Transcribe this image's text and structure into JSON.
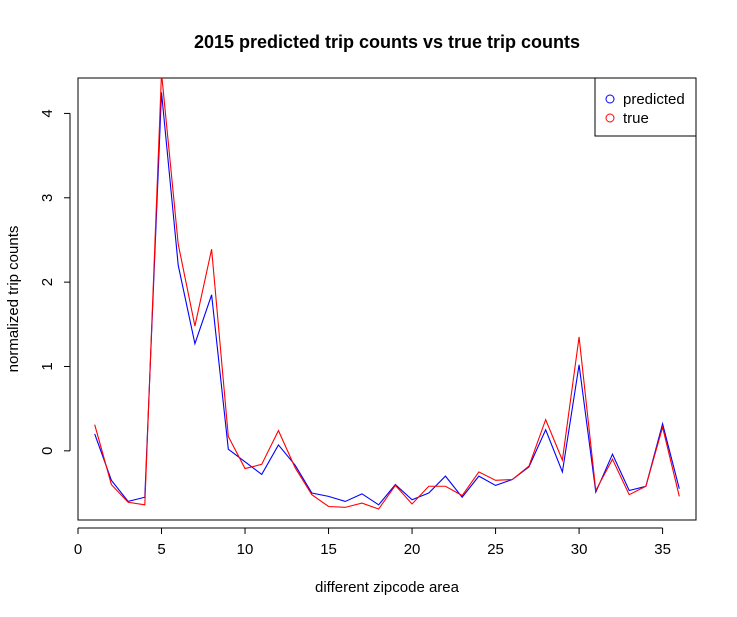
{
  "chart_data": {
    "type": "line",
    "title": "2015 predicted trip counts vs true trip counts",
    "xlabel": "different zipcode area",
    "ylabel": "normalized trip counts",
    "xlim": [
      0,
      37
    ],
    "ylim": [
      -0.82,
      4.42
    ],
    "x_ticks": [
      0,
      5,
      10,
      15,
      20,
      25,
      30,
      35
    ],
    "y_ticks": [
      0,
      1,
      2,
      3,
      4
    ],
    "grid": false,
    "legend_position": "top-right",
    "x": [
      1,
      2,
      3,
      4,
      5,
      6,
      7,
      8,
      9,
      10,
      11,
      12,
      13,
      14,
      15,
      16,
      17,
      18,
      19,
      20,
      21,
      22,
      23,
      24,
      25,
      26,
      27,
      28,
      29,
      30,
      31,
      32,
      33,
      34,
      35,
      36
    ],
    "series": [
      {
        "name": "predicted",
        "color": "#0000ff",
        "values": [
          0.2,
          -0.35,
          -0.6,
          -0.55,
          4.25,
          2.2,
          1.27,
          1.85,
          0.02,
          -0.13,
          -0.28,
          0.07,
          -0.17,
          -0.5,
          -0.54,
          -0.6,
          -0.51,
          -0.64,
          -0.4,
          -0.58,
          -0.5,
          -0.3,
          -0.55,
          -0.3,
          -0.41,
          -0.34,
          -0.19,
          0.25,
          -0.25,
          1.02,
          -0.49,
          -0.04,
          -0.47,
          -0.42,
          0.32,
          -0.45
        ]
      },
      {
        "name": "true",
        "color": "#ff0000",
        "values": [
          0.31,
          -0.4,
          -0.61,
          -0.64,
          4.48,
          2.45,
          1.48,
          2.39,
          0.17,
          -0.21,
          -0.16,
          0.24,
          -0.2,
          -0.52,
          -0.66,
          -0.67,
          -0.62,
          -0.69,
          -0.41,
          -0.63,
          -0.42,
          -0.42,
          -0.53,
          -0.25,
          -0.35,
          -0.34,
          -0.18,
          0.37,
          -0.11,
          1.35,
          -0.47,
          -0.1,
          -0.52,
          -0.42,
          0.28,
          -0.54
        ]
      }
    ]
  }
}
